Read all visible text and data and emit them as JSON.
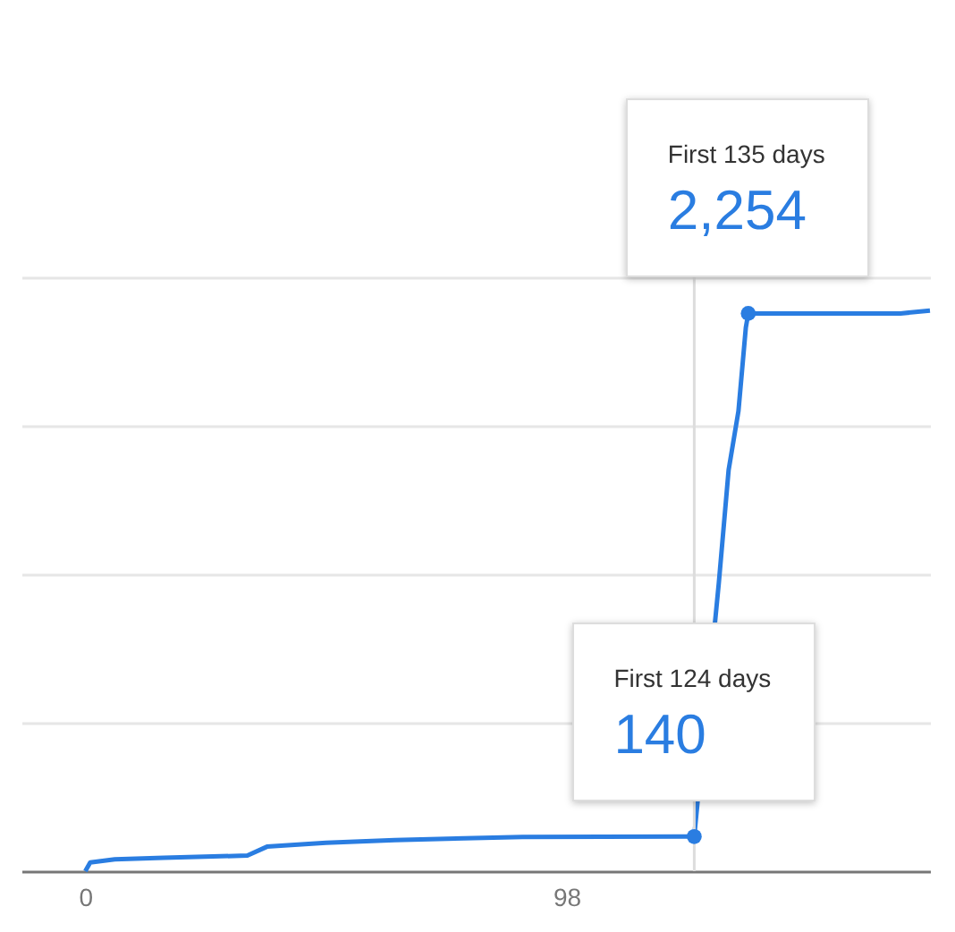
{
  "chart_data": {
    "type": "line",
    "x": [
      0,
      1,
      6,
      16,
      33,
      37,
      49,
      63,
      89,
      124,
      129,
      131,
      133,
      134.5,
      135,
      150,
      166,
      172
    ],
    "series": [
      {
        "color": "#2a7de1",
        "values": [
          0,
          35,
          48,
          54,
          63,
          99,
          115,
          126,
          138,
          140,
          1164,
          1621,
          1859,
          2196,
          2254,
          2254,
          2254,
          2265
        ],
        "value_labels": [
          null,
          null,
          null,
          null,
          null,
          null,
          null,
          null,
          null,
          "140",
          null,
          null,
          null,
          null,
          "2,254",
          null,
          null,
          null
        ]
      }
    ],
    "xlim": [
      -13,
      172
    ],
    "xticks": [
      0,
      98
    ],
    "ylim": [
      0,
      2400
    ],
    "yticks": [
      {
        "value": 600,
        "label": null
      },
      {
        "value": 1200,
        "label": null
      },
      {
        "value": 1800,
        "label": null
      },
      {
        "value": 2400,
        "label": null
      }
    ],
    "tick_labels": "x",
    "grid": "y",
    "ref_lines": [
      {
        "axis": "x",
        "value": 124,
        "color": "#dddddd"
      }
    ],
    "annotations": [
      "First 124 days",
      "First 135 days"
    ]
  }
}
